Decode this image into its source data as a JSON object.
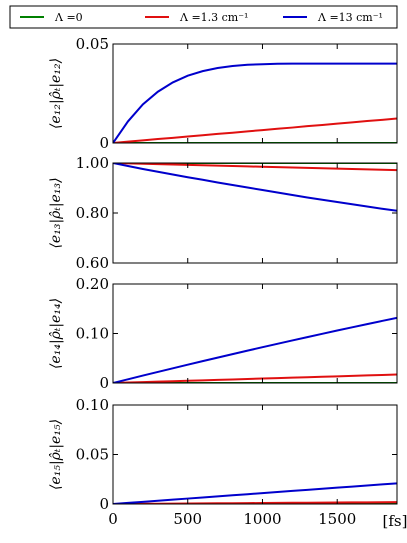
{
  "legend": {
    "entries": [
      {
        "label": "Λ =0",
        "color": "#008000"
      },
      {
        "label": "Λ =1.3 cm⁻¹",
        "color": "#e01010"
      },
      {
        "label": "Λ =13 cm⁻¹",
        "color": "#0000cc"
      }
    ]
  },
  "chart_data": [
    {
      "type": "line",
      "ylabel": "⟨e₁₂|ρ̂ₜ|e₁₂⟩",
      "ylim": [
        0,
        0.05
      ],
      "yticks": [
        0,
        0.05
      ],
      "ytick_labels": [
        "0",
        "0.05"
      ],
      "xlim": [
        0,
        1900
      ],
      "x": [
        0,
        100,
        200,
        300,
        400,
        500,
        600,
        700,
        800,
        900,
        1000,
        1100,
        1200,
        1300,
        1400,
        1500,
        1600,
        1700,
        1800,
        1900
      ],
      "series": [
        {
          "name": "Λ =0",
          "color": "#008000",
          "values": [
            0,
            0,
            0,
            0,
            0,
            0,
            0,
            0,
            0,
            0,
            0,
            0,
            0,
            0,
            0,
            0,
            0,
            0,
            0,
            0
          ]
        },
        {
          "name": "Λ =1.3 cm⁻¹",
          "color": "#e01010",
          "values": [
            0,
            0.0007,
            0.0013,
            0.002,
            0.0026,
            0.0033,
            0.0039,
            0.0046,
            0.0052,
            0.0059,
            0.0065,
            0.0072,
            0.0078,
            0.0085,
            0.0091,
            0.0098,
            0.0104,
            0.0111,
            0.0117,
            0.0124
          ]
        },
        {
          "name": "Λ =13 cm⁻¹",
          "color": "#0000cc",
          "values": [
            0,
            0.0109,
            0.0195,
            0.0259,
            0.0306,
            0.034,
            0.0363,
            0.0379,
            0.0389,
            0.0395,
            0.0398,
            0.04,
            0.0401,
            0.0401,
            0.0401,
            0.0401,
            0.0401,
            0.0401,
            0.0401,
            0.0401
          ]
        }
      ]
    },
    {
      "type": "line",
      "ylabel": "⟨e₁₃|ρ̂ₜ|e₁₃⟩",
      "ylim": [
        0.6,
        1.0
      ],
      "yticks": [
        0.6,
        0.8,
        1.0
      ],
      "ytick_labels": [
        "0.60",
        "0.80",
        "1.00"
      ],
      "xlim": [
        0,
        1900
      ],
      "x": [
        0,
        100,
        200,
        300,
        400,
        500,
        600,
        700,
        800,
        900,
        1000,
        1100,
        1200,
        1300,
        1400,
        1500,
        1600,
        1700,
        1800,
        1900
      ],
      "series": [
        {
          "name": "Λ =0",
          "color": "#008000",
          "values": [
            1,
            1,
            1,
            1,
            1,
            1,
            1,
            1,
            1,
            1,
            1,
            1,
            1,
            1,
            1,
            1,
            1,
            1,
            1,
            1
          ]
        },
        {
          "name": "Λ =1.3 cm⁻¹",
          "color": "#e01010",
          "values": [
            1,
            0.9985,
            0.997,
            0.9955,
            0.994,
            0.9925,
            0.991,
            0.9895,
            0.988,
            0.9865,
            0.985,
            0.9835,
            0.982,
            0.9805,
            0.979,
            0.9775,
            0.976,
            0.9745,
            0.973,
            0.9715
          ]
        },
        {
          "name": "Λ =13 cm⁻¹",
          "color": "#0000cc",
          "values": [
            1,
            0.988,
            0.976,
            0.965,
            0.954,
            0.943,
            0.933,
            0.922,
            0.912,
            0.902,
            0.892,
            0.882,
            0.872,
            0.862,
            0.853,
            0.844,
            0.835,
            0.826,
            0.817,
            0.809
          ]
        }
      ]
    },
    {
      "type": "line",
      "ylabel": "⟨e₁₄|ρ̂ₜ|e₁₄⟩",
      "ylim": [
        0,
        0.2
      ],
      "yticks": [
        0,
        0.1,
        0.2
      ],
      "ytick_labels": [
        "0",
        "0.10",
        "0.20"
      ],
      "xlim": [
        0,
        1900
      ],
      "x": [
        0,
        100,
        200,
        300,
        400,
        500,
        600,
        700,
        800,
        900,
        1000,
        1100,
        1200,
        1300,
        1400,
        1500,
        1600,
        1700,
        1800,
        1900
      ],
      "series": [
        {
          "name": "Λ =0",
          "color": "#008000",
          "values": [
            0,
            0,
            0,
            0,
            0,
            0,
            0,
            0,
            0,
            0,
            0,
            0,
            0,
            0,
            0,
            0,
            0,
            0,
            0,
            0
          ]
        },
        {
          "name": "Λ =1.3 cm⁻¹",
          "color": "#e01010",
          "values": [
            0,
            0.0009,
            0.0018,
            0.0027,
            0.0036,
            0.0045,
            0.0054,
            0.0063,
            0.0072,
            0.0081,
            0.009,
            0.0099,
            0.0108,
            0.0117,
            0.0126,
            0.0135,
            0.0144,
            0.0153,
            0.0162,
            0.0171
          ]
        },
        {
          "name": "Λ =13 cm⁻¹",
          "color": "#0000cc",
          "values": [
            0,
            0.0075,
            0.015,
            0.0224,
            0.0297,
            0.037,
            0.0442,
            0.0513,
            0.0584,
            0.0654,
            0.0723,
            0.0792,
            0.086,
            0.0927,
            0.0994,
            0.106,
            0.1125,
            0.119,
            0.1254,
            0.1317
          ]
        }
      ]
    },
    {
      "type": "line",
      "ylabel": "⟨e₁₅|ρ̂ₜ|e₁₅⟩",
      "ylim": [
        0,
        0.1
      ],
      "yticks": [
        0,
        0.05,
        0.1
      ],
      "ytick_labels": [
        "0",
        "0.05",
        "0.10"
      ],
      "xlim": [
        0,
        1900
      ],
      "x": [
        0,
        100,
        200,
        300,
        400,
        500,
        600,
        700,
        800,
        900,
        1000,
        1100,
        1200,
        1300,
        1400,
        1500,
        1600,
        1700,
        1800,
        1900
      ],
      "xticks": [
        0,
        500,
        1000,
        1500
      ],
      "xtick_labels": [
        "0",
        "500",
        "1000",
        "1500"
      ],
      "xlabel": "[fs]",
      "series": [
        {
          "name": "Λ =0",
          "color": "#008000",
          "values": [
            0,
            0,
            0,
            0,
            0,
            0,
            0,
            0,
            0,
            0,
            0,
            0,
            0,
            0,
            0,
            0,
            0,
            0,
            0,
            0
          ]
        },
        {
          "name": "Λ =1.3 cm⁻¹",
          "color": "#e01010",
          "values": [
            0,
            0.0001,
            0.0002,
            0.0003,
            0.0004,
            0.0005,
            0.0006,
            0.0007,
            0.0008,
            0.0009,
            0.001,
            0.0011,
            0.0012,
            0.0013,
            0.0014,
            0.0015,
            0.0016,
            0.0017,
            0.0018,
            0.0019
          ]
        },
        {
          "name": "Λ =13 cm⁻¹",
          "color": "#0000cc",
          "values": [
            0,
            0.0011,
            0.0022,
            0.0033,
            0.0044,
            0.0055,
            0.0066,
            0.0077,
            0.0088,
            0.0099,
            0.011,
            0.0121,
            0.0132,
            0.0143,
            0.0154,
            0.0165,
            0.0176,
            0.0187,
            0.0198,
            0.0209
          ]
        }
      ]
    }
  ]
}
